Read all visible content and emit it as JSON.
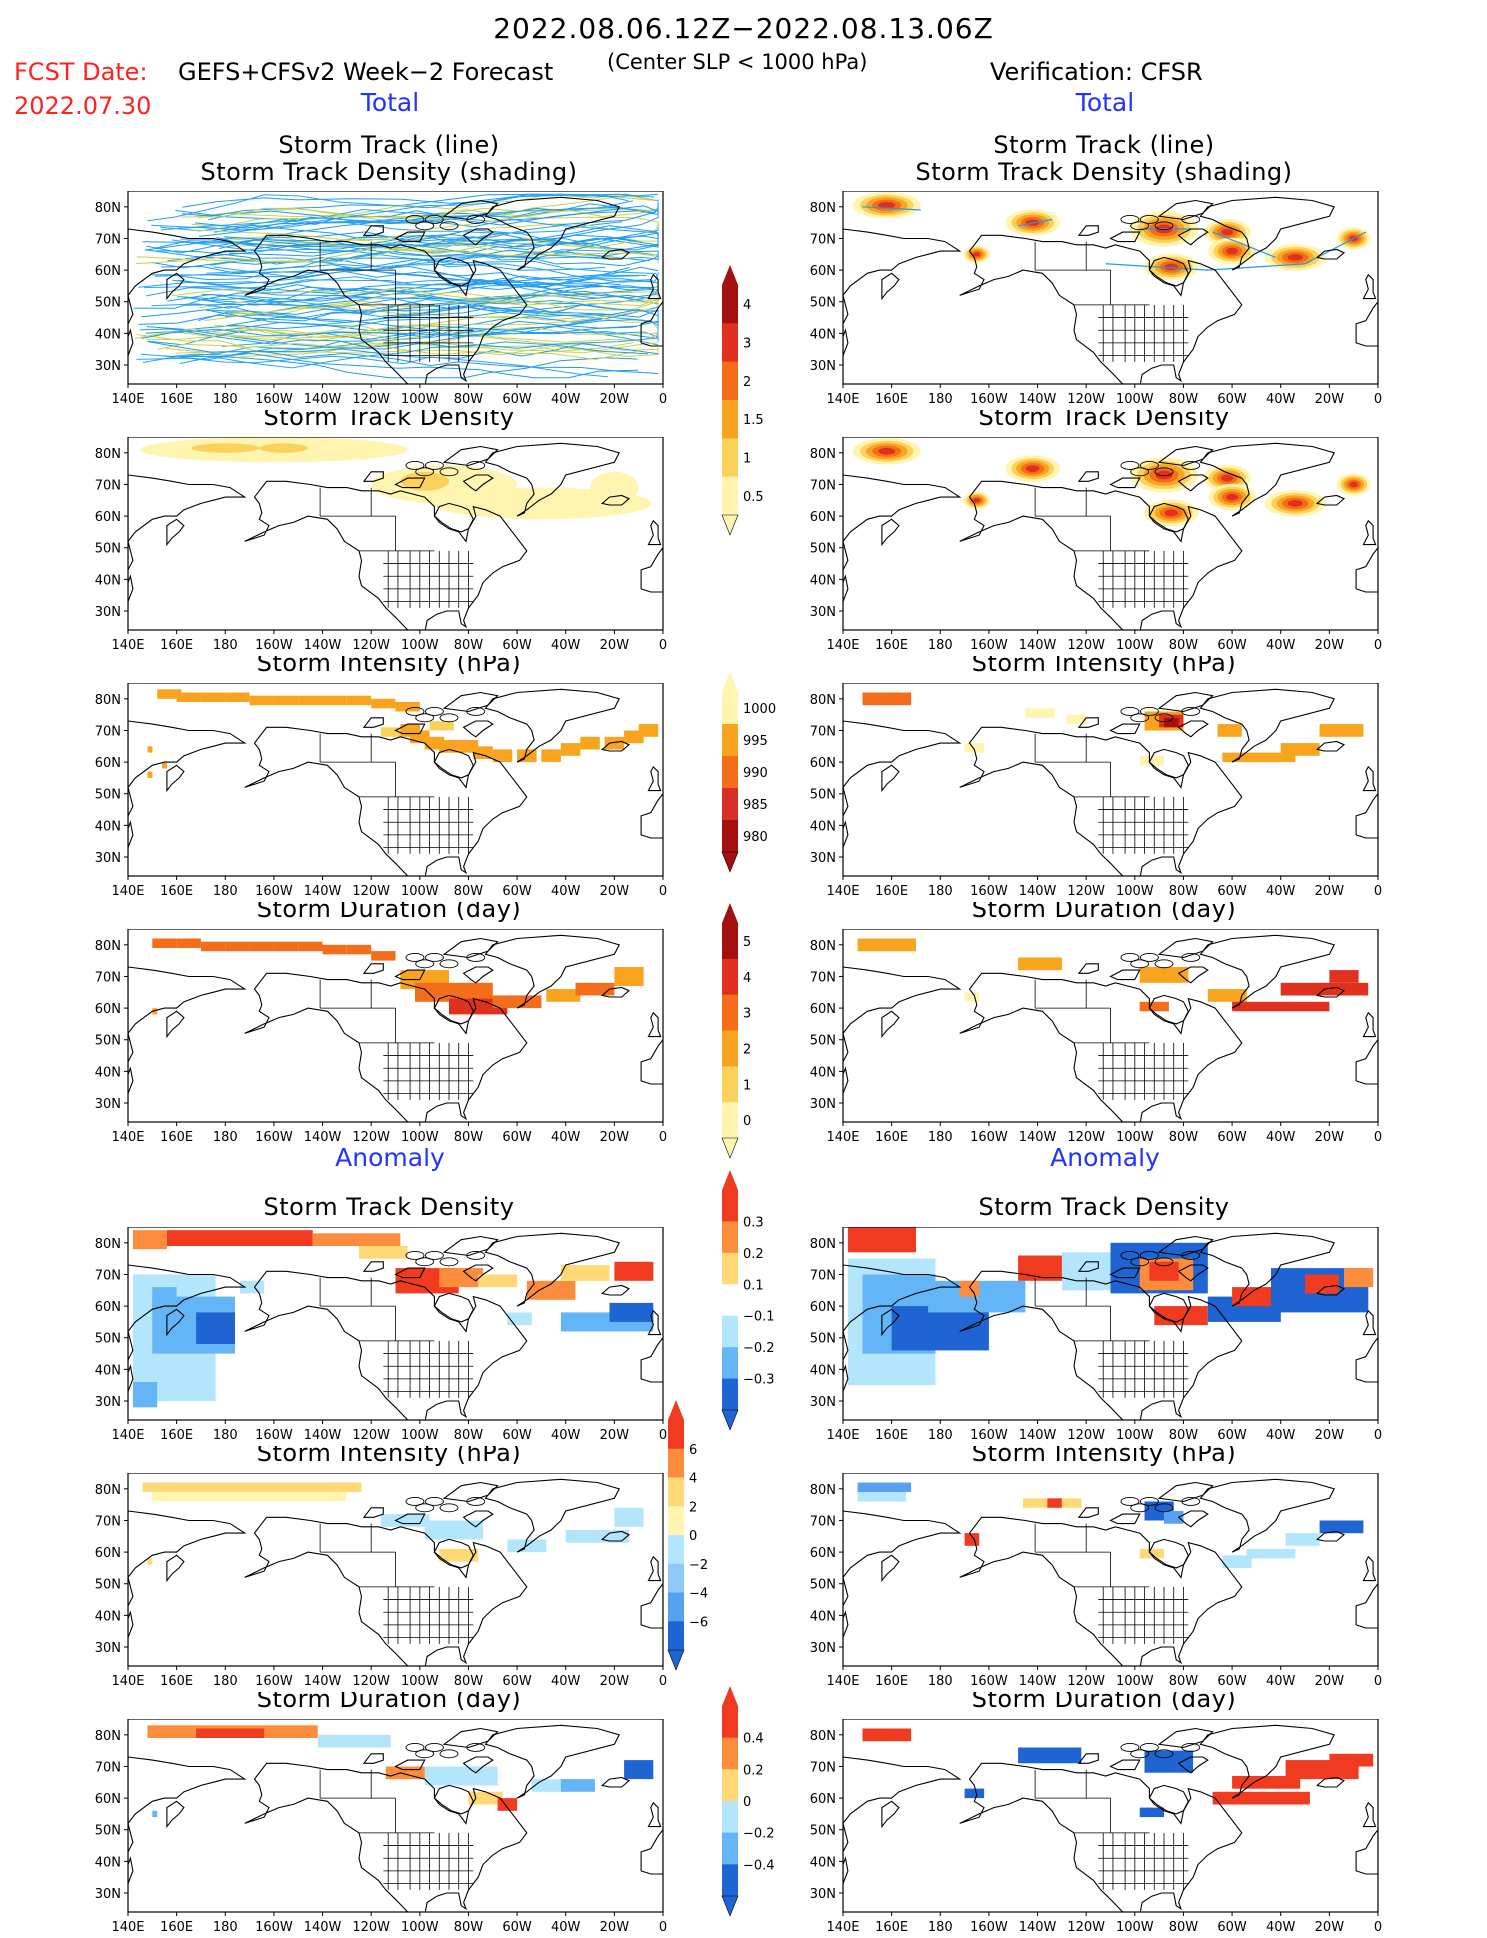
{
  "header": {
    "time_range": "2022.08.06.12Z−2022.08.13.06Z",
    "fcst_date_label": "FCST Date:",
    "fcst_date": "2022.07.30",
    "model": "GEFS+CFSv2 Week−2 Forecast",
    "criterion": "(Center SLP < 1000 hPa)",
    "verification": "Verification: CFSR"
  },
  "sections": {
    "total": "Total",
    "anomaly": "Anomaly"
  },
  "panel_titles": {
    "track_line": "Storm Track (line)",
    "track_density_shading": "Storm Track Density (shading)",
    "track_density": "Storm Track Density",
    "intensity": "Storm Intensity (hPa)",
    "duration": "Storm Duration (day)"
  },
  "axes": {
    "lon_labels": [
      "140E",
      "160E",
      "180",
      "160W",
      "140W",
      "120W",
      "100W",
      "80W",
      "60W",
      "40W",
      "20W",
      "0"
    ],
    "lat_labels": [
      "80N",
      "70N",
      "60N",
      "50N",
      "40N",
      "30N"
    ]
  },
  "colorbars": {
    "density_total": {
      "labels": [
        "4",
        "3",
        "2",
        "1.5",
        "1",
        "0.5"
      ],
      "colors": [
        "#a50f0f",
        "#e0301e",
        "#f46d1a",
        "#f8a41f",
        "#fcd15b",
        "#fff4b0"
      ]
    },
    "intensity_total": {
      "labels": [
        "1000",
        "995",
        "990",
        "985",
        "980"
      ],
      "colors": [
        "#fff4b0",
        "#f8a41f",
        "#f46d1a",
        "#d73027",
        "#a50f0f"
      ]
    },
    "duration_total": {
      "labels": [
        "5",
        "4",
        "3",
        "2",
        "1",
        "0"
      ],
      "colors": [
        "#a50f0f",
        "#e0301e",
        "#f46d1a",
        "#f8a41f",
        "#fcd15b",
        "#fff4b0"
      ]
    },
    "density_anom": {
      "labels": [
        "0.3",
        "0.2",
        "0.1",
        "−0.1",
        "−0.2",
        "−0.3"
      ],
      "colors": [
        "#f03b20",
        "#fd8d3c",
        "#fed976",
        "#ffffff",
        "#b3e5fc",
        "#64b5f6",
        "#1e64d2"
      ]
    },
    "intensity_anom": {
      "labels": [
        "6",
        "4",
        "2",
        "0",
        "−2",
        "−4",
        "−6"
      ],
      "colors": [
        "#f03b20",
        "#fd8d3c",
        "#fed976",
        "#fff4b0",
        "#b3e5fc",
        "#90c8f8",
        "#5aa0f0",
        "#1e64d2"
      ]
    },
    "duration_anom": {
      "labels": [
        "0.4",
        "0.2",
        "0",
        "−0.2",
        "−0.4"
      ],
      "colors": [
        "#f03b20",
        "#fd8d3c",
        "#fed976",
        "#b3e5fc",
        "#64b5f6",
        "#1e64d2"
      ]
    }
  }
}
